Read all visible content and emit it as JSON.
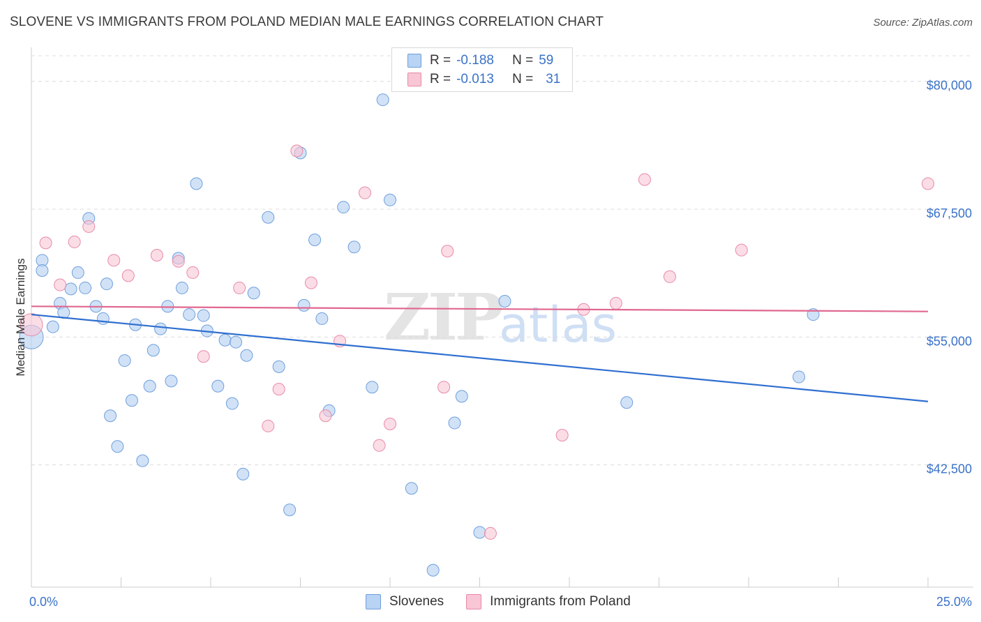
{
  "title": "SLOVENE VS IMMIGRANTS FROM POLAND MEDIAN MALE EARNINGS CORRELATION CHART",
  "source": "Source: ZipAtlas.com",
  "watermark": {
    "zip": "ZIP",
    "atlas": "atlas"
  },
  "legend": {
    "r_label": "R =",
    "n_label": "N =",
    "series": [
      {
        "name": "Slovenes",
        "r": "-0.188",
        "n": "59"
      },
      {
        "name": "Immigrants from Poland",
        "r": "-0.013",
        "n": "31"
      }
    ]
  },
  "colors": {
    "slovenes_fill": "#b8d3f3",
    "slovenes_stroke": "#6f9fdc",
    "slovenes_line": "#2f6fd0",
    "poland_fill": "#f8c6d5",
    "poland_stroke": "#e88aa7",
    "poland_line": "#e0678f"
  },
  "chart_data": {
    "type": "scatter",
    "title": "SLOVENE VS IMMIGRANTS FROM POLAND MEDIAN MALE EARNINGS CORRELATION CHART",
    "xlabel": "",
    "ylabel": "Median Male Earnings",
    "xlim": [
      0,
      25
    ],
    "ylim": [
      31500,
      82500
    ],
    "x_tick_labels": [
      "0.0%",
      "25.0%"
    ],
    "y_ticks": [
      42500,
      55000,
      67500,
      80000
    ],
    "y_tick_labels": [
      "$42,500",
      "$55,000",
      "$67,500",
      "$80,000"
    ],
    "series": [
      {
        "name": "Slovenes",
        "trend": {
          "x": [
            0,
            25
          ],
          "y": [
            57200,
            48700
          ]
        },
        "points": [
          [
            0.0,
            55000
          ],
          [
            0.3,
            62500
          ],
          [
            0.3,
            61500
          ],
          [
            0.6,
            56000
          ],
          [
            0.8,
            58300
          ],
          [
            0.9,
            57400
          ],
          [
            1.1,
            59700
          ],
          [
            1.3,
            61300
          ],
          [
            1.5,
            59800
          ],
          [
            1.6,
            66600
          ],
          [
            1.8,
            58000
          ],
          [
            2.0,
            56800
          ],
          [
            2.1,
            60200
          ],
          [
            2.2,
            47300
          ],
          [
            2.4,
            44300
          ],
          [
            2.6,
            52700
          ],
          [
            2.8,
            48800
          ],
          [
            2.9,
            56200
          ],
          [
            3.1,
            42900
          ],
          [
            3.3,
            50200
          ],
          [
            3.4,
            53700
          ],
          [
            3.6,
            55800
          ],
          [
            3.8,
            58000
          ],
          [
            3.9,
            50700
          ],
          [
            4.1,
            62700
          ],
          [
            4.2,
            59800
          ],
          [
            4.4,
            57200
          ],
          [
            4.6,
            70000
          ],
          [
            4.8,
            57100
          ],
          [
            4.9,
            55600
          ],
          [
            5.2,
            50200
          ],
          [
            5.4,
            54700
          ],
          [
            5.6,
            48500
          ],
          [
            5.7,
            54500
          ],
          [
            5.9,
            41600
          ],
          [
            6.0,
            53200
          ],
          [
            6.2,
            59300
          ],
          [
            6.6,
            66700
          ],
          [
            6.9,
            52100
          ],
          [
            7.2,
            38100
          ],
          [
            7.5,
            73000
          ],
          [
            7.6,
            58100
          ],
          [
            7.9,
            64500
          ],
          [
            8.1,
            56800
          ],
          [
            8.3,
            47800
          ],
          [
            8.7,
            67700
          ],
          [
            9.0,
            63800
          ],
          [
            9.5,
            50100
          ],
          [
            9.8,
            78200
          ],
          [
            10.0,
            68400
          ],
          [
            10.6,
            40200
          ],
          [
            11.2,
            32200
          ],
          [
            11.8,
            46600
          ],
          [
            12.0,
            49200
          ],
          [
            12.5,
            35900
          ],
          [
            13.2,
            58500
          ],
          [
            16.6,
            48600
          ],
          [
            21.4,
            51100
          ],
          [
            21.8,
            57200
          ]
        ]
      },
      {
        "name": "Immigrants from Poland",
        "trend": {
          "x": [
            0,
            25
          ],
          "y": [
            58000,
            57500
          ]
        },
        "points": [
          [
            0.0,
            56200
          ],
          [
            0.4,
            64200
          ],
          [
            0.8,
            60100
          ],
          [
            1.2,
            64300
          ],
          [
            1.6,
            65800
          ],
          [
            2.3,
            62500
          ],
          [
            2.7,
            61000
          ],
          [
            3.5,
            63000
          ],
          [
            4.1,
            62400
          ],
          [
            4.5,
            61300
          ],
          [
            4.8,
            53100
          ],
          [
            5.8,
            59800
          ],
          [
            6.6,
            46300
          ],
          [
            6.9,
            49900
          ],
          [
            7.4,
            73200
          ],
          [
            7.8,
            60300
          ],
          [
            8.2,
            47300
          ],
          [
            8.6,
            54600
          ],
          [
            9.3,
            69100
          ],
          [
            9.7,
            44400
          ],
          [
            10.0,
            46500
          ],
          [
            11.5,
            50100
          ],
          [
            11.6,
            63400
          ],
          [
            12.8,
            35800
          ],
          [
            14.8,
            45400
          ],
          [
            15.4,
            57700
          ],
          [
            16.3,
            58300
          ],
          [
            17.1,
            70400
          ],
          [
            17.8,
            60900
          ],
          [
            19.8,
            63500
          ],
          [
            25.0,
            70000
          ]
        ]
      }
    ]
  }
}
